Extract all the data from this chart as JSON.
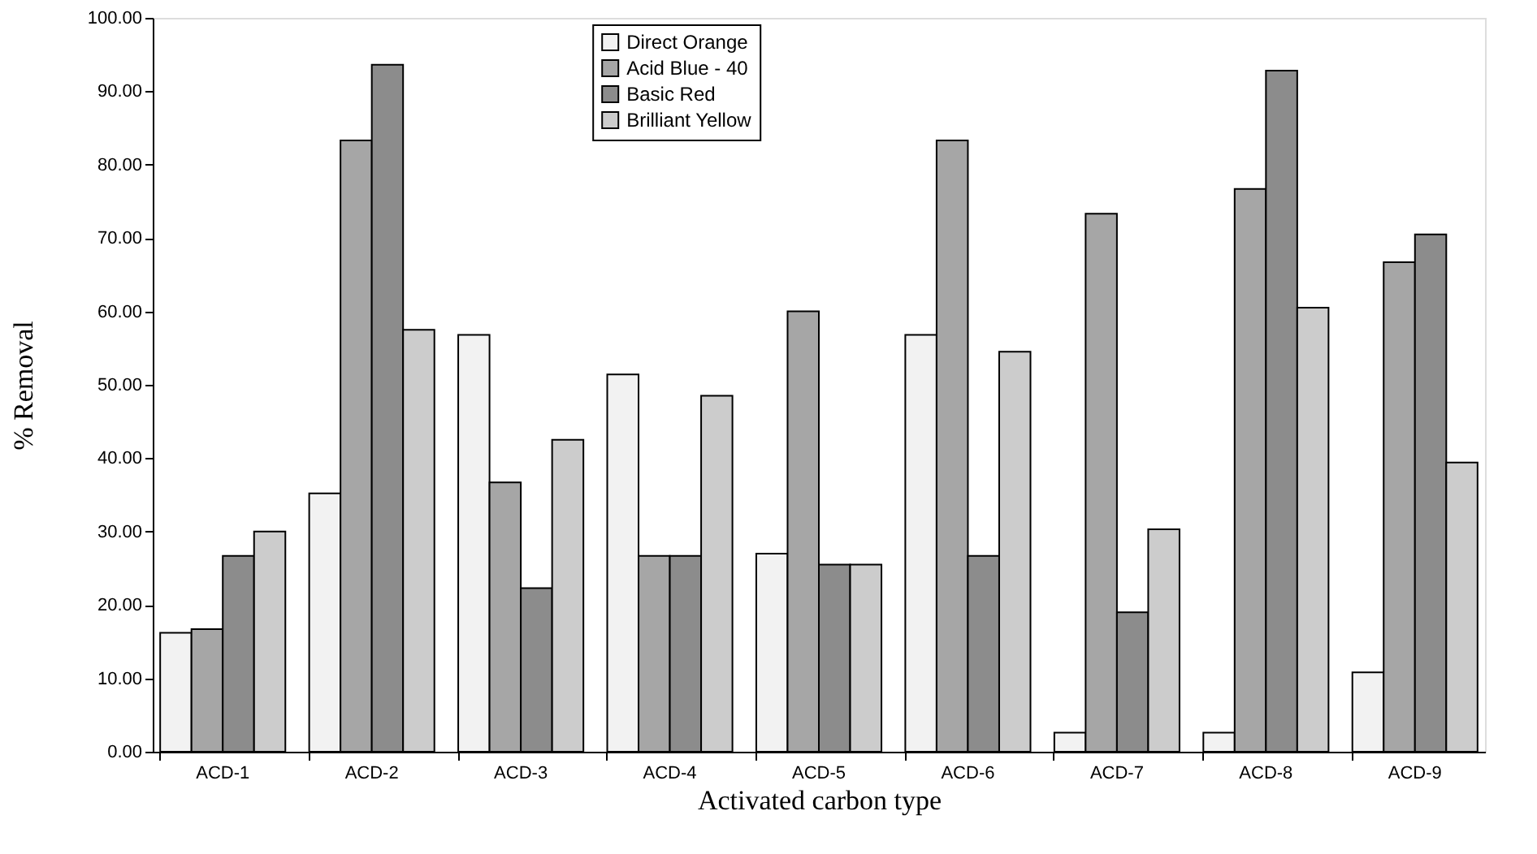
{
  "chart_data": {
    "type": "bar",
    "xlabel": "Activated carbon type",
    "ylabel": "% Removal",
    "categories": [
      "ACD-1",
      "ACD-2",
      "ACD-3",
      "ACD-4",
      "ACD-5",
      "ACD-6",
      "ACD-7",
      "ACD-8",
      "ACD-9"
    ],
    "series": [
      {
        "name": "Direct Orange",
        "color": "#f2f2f2",
        "values": [
          16.2,
          35.2,
          56.8,
          51.4,
          27.0,
          56.8,
          2.6,
          2.6,
          10.8
        ]
      },
      {
        "name": "Acid Blue - 40",
        "color": "#a6a6a6",
        "values": [
          16.7,
          83.3,
          36.7,
          26.7,
          60.0,
          83.3,
          73.3,
          76.7,
          66.7
        ]
      },
      {
        "name": "Basic Red",
        "color": "#8c8c8c",
        "values": [
          26.7,
          93.6,
          22.3,
          26.7,
          25.5,
          26.7,
          19.0,
          92.8,
          70.5
        ]
      },
      {
        "name": "Brilliant Yellow",
        "color": "#cccccc",
        "values": [
          30.0,
          57.5,
          42.5,
          48.5,
          25.5,
          54.5,
          30.3,
          60.5,
          39.4
        ]
      }
    ],
    "ylim": [
      0,
      100
    ],
    "yticks": [
      {
        "value": 0,
        "label": "0.00"
      },
      {
        "value": 10,
        "label": "10.00"
      },
      {
        "value": 20,
        "label": "20.00"
      },
      {
        "value": 30,
        "label": "30.00"
      },
      {
        "value": 40,
        "label": "40.00"
      },
      {
        "value": 50,
        "label": "50.00"
      },
      {
        "value": 60,
        "label": "60.00"
      },
      {
        "value": 70,
        "label": "70.00"
      },
      {
        "value": 80,
        "label": "80.00"
      },
      {
        "value": 90,
        "label": "90.00"
      },
      {
        "value": 100,
        "label": "100.00"
      }
    ],
    "grid": false,
    "legend": "top"
  }
}
